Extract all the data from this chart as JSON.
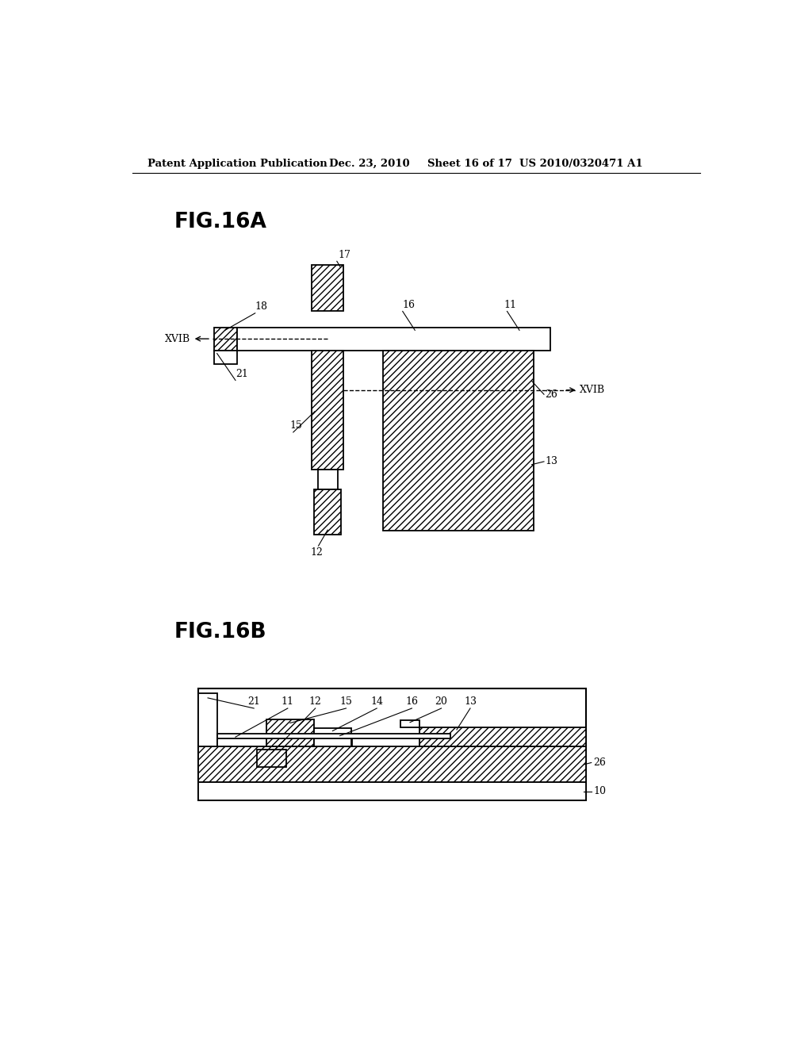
{
  "background_color": "#ffffff",
  "header_text": "Patent Application Publication",
  "header_date": "Dec. 23, 2010",
  "header_sheet": "Sheet 16 of 17",
  "header_patent": "US 2010/0320471 A1",
  "fig16a_label": "FIG.16A",
  "fig16b_label": "FIG.16B",
  "hatch_pattern": "////",
  "line_color": "#000000",
  "fig_label_fontsize": 20,
  "header_fontsize": 10,
  "annotation_fontsize": 9
}
